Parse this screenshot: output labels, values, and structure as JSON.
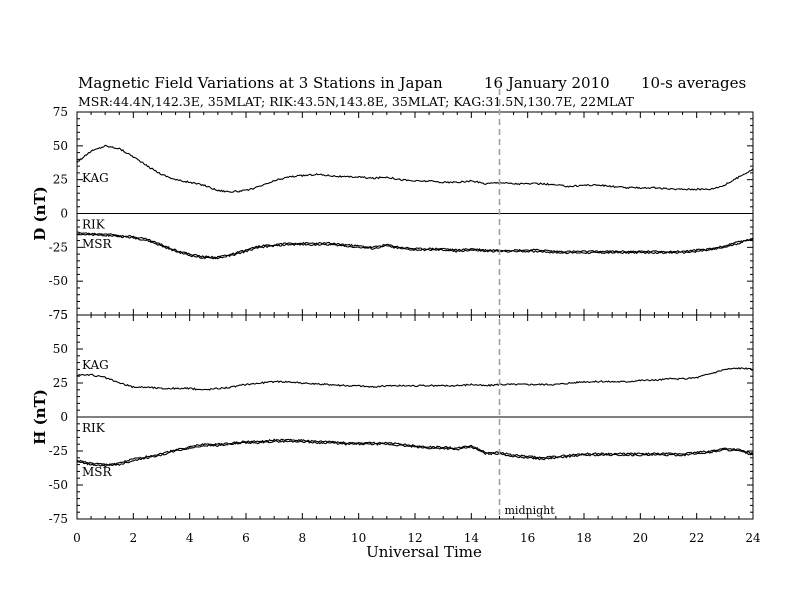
{
  "header": {
    "title": "Magnetic Field Variations at 3 Stations in Japan",
    "date": "16 January 2010",
    "averaging": "10-s averages",
    "stations_line": "MSR:44.4N,142.3E, 35MLAT;  RIK:43.5N,143.8E, 35MLAT;  KAG:31.5N,130.7E, 22MLAT"
  },
  "chart_data": {
    "type": "line",
    "xlabel": "Universal Time",
    "xlim": [
      0,
      24
    ],
    "x_ticks": [
      "0",
      "2",
      "4",
      "6",
      "8",
      "10",
      "12",
      "14",
      "16",
      "18",
      "20",
      "22",
      "24"
    ],
    "annotation": {
      "x": 15,
      "label": "midnight"
    },
    "panels": [
      {
        "ylabel": "D (nT)",
        "ylim": [
          -75,
          75
        ],
        "y_ticks": [
          "75",
          "50",
          "25",
          "0",
          "-25",
          "-50",
          "-75"
        ],
        "series": [
          {
            "name": "KAG",
            "x": [
              0,
              0.5,
              1,
              1.5,
              2,
              2.5,
              3,
              3.5,
              4,
              4.5,
              5,
              5.5,
              6,
              6.5,
              7,
              7.5,
              8,
              8.5,
              9,
              9.5,
              10,
              10.5,
              11,
              11.5,
              12,
              12.5,
              13,
              13.5,
              14,
              14.5,
              15,
              15.5,
              16,
              16.5,
              17,
              17.5,
              18,
              18.5,
              19,
              19.5,
              20,
              20.5,
              21,
              21.5,
              22,
              22.5,
              23,
              23.5,
              24
            ],
            "y": [
              38,
              46,
              50,
              48,
              42,
              35,
              29,
              25,
              23,
              21,
              17,
              16,
              17,
              20,
              24,
              27,
              28,
              29,
              28,
              27,
              27,
              26,
              27,
              25,
              24,
              24,
              23,
              23,
              24,
              22,
              23,
              22,
              22,
              22,
              21,
              20,
              21,
              21,
              20,
              19,
              19,
              19,
              18,
              18,
              18,
              18,
              21,
              27,
              33
            ]
          },
          {
            "name": "RIK",
            "x": [
              0,
              0.5,
              1,
              1.5,
              2,
              2.5,
              3,
              3.5,
              4,
              4.5,
              5,
              5.5,
              6,
              6.5,
              7,
              7.5,
              8,
              8.5,
              9,
              9.5,
              10,
              10.5,
              11,
              11.5,
              12,
              12.5,
              13,
              13.5,
              14,
              14.5,
              15,
              15.5,
              16,
              16.5,
              17,
              17.5,
              18,
              18.5,
              19,
              19.5,
              20,
              20.5,
              21,
              21.5,
              22,
              22.5,
              23,
              23.5,
              24
            ],
            "y": [
              -14,
              -15,
              -15,
              -16,
              -17,
              -19,
              -23,
              -27,
              -30,
              -32,
              -32,
              -30,
              -27,
              -24,
              -23,
              -22,
              -22,
              -22,
              -22,
              -23,
              -24,
              -25,
              -23,
              -25,
              -26,
              -26,
              -26,
              -27,
              -26,
              -27,
              -27,
              -27,
              -27,
              -27,
              -28,
              -28,
              -28,
              -28,
              -28,
              -28,
              -28,
              -28,
              -28,
              -28,
              -27,
              -26,
              -24,
              -21,
              -19
            ]
          },
          {
            "name": "MSR",
            "x": [
              0,
              0.5,
              1,
              1.5,
              2,
              2.5,
              3,
              3.5,
              4,
              4.5,
              5,
              5.5,
              6,
              6.5,
              7,
              7.5,
              8,
              8.5,
              9,
              9.5,
              10,
              10.5,
              11,
              11.5,
              12,
              12.5,
              13,
              13.5,
              14,
              14.5,
              15,
              15.5,
              16,
              16.5,
              17,
              17.5,
              18,
              18.5,
              19,
              19.5,
              20,
              20.5,
              21,
              21.5,
              22,
              22.5,
              23,
              23.5,
              24
            ],
            "y": [
              -15,
              -16,
              -16,
              -17,
              -18,
              -20,
              -24,
              -28,
              -31,
              -33,
              -33,
              -31,
              -28,
              -25,
              -24,
              -23,
              -23,
              -23,
              -23,
              -24,
              -25,
              -26,
              -24,
              -26,
              -27,
              -27,
              -27,
              -28,
              -27,
              -28,
              -28,
              -28,
              -28,
              -28,
              -29,
              -29,
              -29,
              -29,
              -29,
              -29,
              -29,
              -29,
              -29,
              -29,
              -28,
              -27,
              -25,
              -22,
              -18
            ]
          }
        ]
      },
      {
        "ylabel": "H (nT)",
        "ylim": [
          -75,
          75
        ],
        "y_ticks": [
          "75",
          "50",
          "25",
          "0",
          "-25",
          "-50",
          "-75"
        ],
        "series": [
          {
            "name": "KAG",
            "x": [
              0,
              0.5,
              1,
              1.5,
              2,
              2.5,
              3,
              3.5,
              4,
              4.5,
              5,
              5.5,
              6,
              6.5,
              7,
              7.5,
              8,
              8.5,
              9,
              9.5,
              10,
              10.5,
              11,
              11.5,
              12,
              12.5,
              13,
              13.5,
              14,
              14.5,
              15,
              15.5,
              16,
              16.5,
              17,
              17.5,
              18,
              18.5,
              19,
              19.5,
              20,
              20.5,
              21,
              21.5,
              22,
              22.5,
              23,
              23.5,
              24
            ],
            "y": [
              31,
              31,
              29,
              25,
              22,
              22,
              21,
              21,
              21,
              20,
              21,
              22,
              24,
              25,
              26,
              26,
              25,
              24,
              24,
              23,
              23,
              22,
              23,
              23,
              23,
              23,
              23,
              23,
              24,
              23,
              24,
              24,
              24,
              24,
              24,
              25,
              26,
              26,
              26,
              26,
              27,
              27,
              28,
              28,
              29,
              32,
              35,
              36,
              35
            ]
          },
          {
            "name": "RIK",
            "x": [
              0,
              0.5,
              1,
              1.5,
              2,
              2.5,
              3,
              3.5,
              4,
              4.5,
              5,
              5.5,
              6,
              6.5,
              7,
              7.5,
              8,
              8.5,
              9,
              9.5,
              10,
              10.5,
              11,
              11.5,
              12,
              12.5,
              13,
              13.5,
              14,
              14.5,
              15,
              15.5,
              16,
              16.5,
              17,
              17.5,
              18,
              18.5,
              19,
              19.5,
              20,
              20.5,
              21,
              21.5,
              22,
              22.5,
              23,
              23.5,
              24
            ],
            "y": [
              -32,
              -34,
              -35,
              -34,
              -31,
              -29,
              -27,
              -24,
              -22,
              -20,
              -20,
              -19,
              -18,
              -18,
              -17,
              -17,
              -17,
              -18,
              -18,
              -19,
              -19,
              -19,
              -19,
              -20,
              -21,
              -22,
              -22,
              -23,
              -21,
              -26,
              -26,
              -28,
              -29,
              -30,
              -29,
              -28,
              -27,
              -27,
              -27,
              -27,
              -27,
              -27,
              -27,
              -27,
              -26,
              -25,
              -23,
              -24,
              -27
            ]
          },
          {
            "name": "MSR",
            "x": [
              0,
              0.5,
              1,
              1.5,
              2,
              2.5,
              3,
              3.5,
              4,
              4.5,
              5,
              5.5,
              6,
              6.5,
              7,
              7.5,
              8,
              8.5,
              9,
              9.5,
              10,
              10.5,
              11,
              11.5,
              12,
              12.5,
              13,
              13.5,
              14,
              14.5,
              15,
              15.5,
              16,
              16.5,
              17,
              17.5,
              18,
              18.5,
              19,
              19.5,
              20,
              20.5,
              21,
              21.5,
              22,
              22.5,
              23,
              23.5,
              24
            ],
            "y": [
              -33,
              -35,
              -36,
              -35,
              -32,
              -30,
              -28,
              -25,
              -23,
              -21,
              -21,
              -20,
              -19,
              -19,
              -18,
              -18,
              -18,
              -19,
              -19,
              -20,
              -20,
              -20,
              -20,
              -21,
              -22,
              -23,
              -23,
              -24,
              -22,
              -27,
              -27,
              -29,
              -30,
              -31,
              -30,
              -29,
              -28,
              -28,
              -28,
              -28,
              -28,
              -28,
              -28,
              -28,
              -27,
              -26,
              -24,
              -25,
              -28
            ]
          }
        ]
      }
    ]
  }
}
